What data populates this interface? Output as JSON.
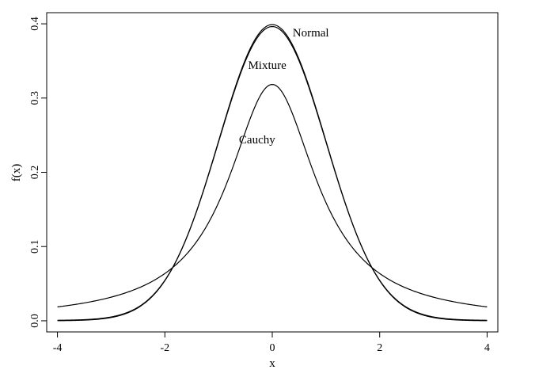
{
  "chart_data": {
    "type": "line",
    "xlabel": "x",
    "ylabel": "f(x)",
    "xlim": [
      -4.2,
      4.2
    ],
    "ylim": [
      -0.015,
      0.415
    ],
    "xticks": [
      -4,
      -2,
      0,
      2,
      4
    ],
    "xtick_labels": [
      "-4",
      "-2",
      "0",
      "2",
      "4"
    ],
    "yticks": [
      0.0,
      0.1,
      0.2,
      0.3,
      0.4
    ],
    "ytick_labels": [
      "0.0",
      "0.1",
      "0.2",
      "0.3",
      "0.4"
    ],
    "grid": false,
    "series": [
      {
        "name": "Normal",
        "x": [
          -4,
          -3.5,
          -3,
          -2.5,
          -2,
          -1.5,
          -1,
          -0.5,
          0,
          0.5,
          1,
          1.5,
          2,
          2.5,
          3,
          3.5,
          4
        ],
        "y": [
          0.0001,
          0.0009,
          0.0044,
          0.0175,
          0.054,
          0.1295,
          0.242,
          0.3521,
          0.3989,
          0.3521,
          0.242,
          0.1295,
          0.054,
          0.0175,
          0.0044,
          0.0009,
          0.0001
        ]
      },
      {
        "name": "Mixture",
        "x": [
          -4,
          -3.5,
          -3,
          -2.5,
          -2,
          -1.5,
          -1,
          -0.5,
          0,
          0.5,
          1,
          1.5,
          2,
          2.5,
          3,
          3.5,
          4
        ],
        "y": [
          0.001,
          0.0018,
          0.0056,
          0.0181,
          0.0539,
          0.1289,
          0.2396,
          0.3472,
          0.3931,
          0.3472,
          0.2396,
          0.1289,
          0.0539,
          0.0181,
          0.0056,
          0.0018,
          0.001
        ]
      },
      {
        "name": "Cauchy",
        "x": [
          -4,
          -3.5,
          -3,
          -2.5,
          -2,
          -1.5,
          -1,
          -0.5,
          0,
          0.5,
          1,
          1.5,
          2,
          2.5,
          3,
          3.5,
          4
        ],
        "y": [
          0.0187,
          0.0239,
          0.0318,
          0.0439,
          0.0637,
          0.0979,
          0.1592,
          0.2546,
          0.3183,
          0.2546,
          0.1592,
          0.0979,
          0.0637,
          0.0439,
          0.0318,
          0.0239,
          0.0187
        ]
      }
    ],
    "annotations": [
      {
        "text": "Normal",
        "x": 0.38,
        "y": 0.383
      },
      {
        "text": "Mixture",
        "x": -0.45,
        "y": 0.339
      },
      {
        "text": "Cauchy",
        "x": -0.62,
        "y": 0.239
      }
    ]
  }
}
